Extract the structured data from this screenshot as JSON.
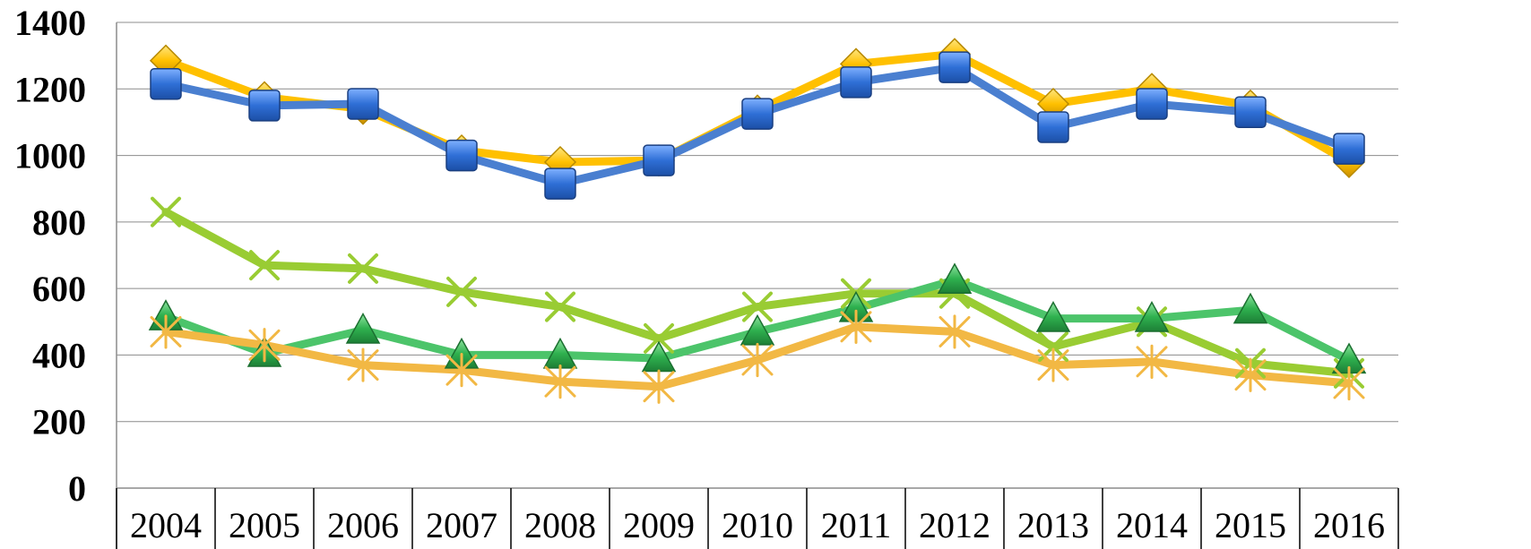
{
  "chart_data": {
    "type": "line",
    "title": "",
    "xlabel": "",
    "ylabel": "",
    "ylim": [
      0,
      1400
    ],
    "yticks": [
      "0",
      "200",
      "400",
      "600",
      "800",
      "1000",
      "1200",
      "1400"
    ],
    "categories": [
      "2004",
      "2005",
      "2006",
      "2007",
      "2008",
      "2009",
      "2010",
      "2011",
      "2012",
      "2013",
      "2014",
      "2015",
      "2016"
    ],
    "grid": true,
    "legend": "none",
    "series": [
      {
        "values": [
          1285,
          1175,
          1140,
          1015,
          980,
          985,
          1135,
          1275,
          1305,
          1155,
          1200,
          1150,
          980
        ],
        "color": "#ffc000",
        "marker": "diamond"
      },
      {
        "values": [
          1215,
          1150,
          1155,
          1000,
          915,
          985,
          1125,
          1220,
          1265,
          1085,
          1155,
          1130,
          1020
        ],
        "color": "#4a7fd0",
        "marker": "square"
      },
      {
        "values": [
          830,
          670,
          660,
          590,
          545,
          450,
          545,
          585,
          585,
          425,
          500,
          375,
          345
        ],
        "color": "#99cc33",
        "marker": "x"
      },
      {
        "values": [
          515,
          405,
          475,
          400,
          400,
          390,
          470,
          540,
          625,
          510,
          510,
          535,
          385
        ],
        "color": "#4cc46a",
        "marker": "triangle"
      },
      {
        "values": [
          470,
          430,
          370,
          355,
          320,
          305,
          385,
          485,
          470,
          370,
          380,
          340,
          315
        ],
        "color": "#f2b844",
        "marker": "star"
      }
    ]
  }
}
